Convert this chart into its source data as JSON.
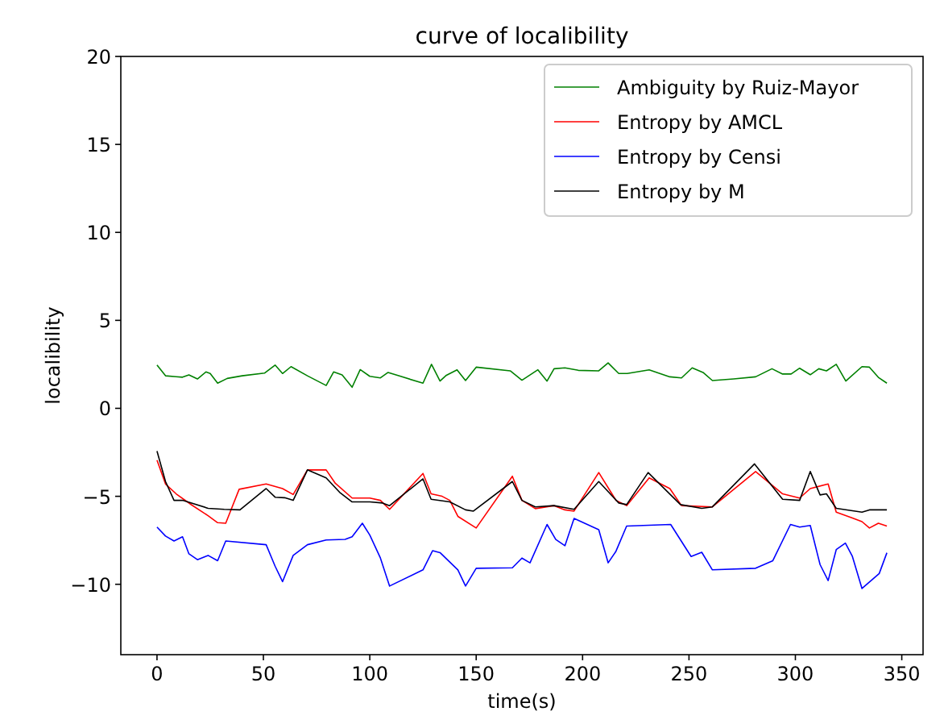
{
  "chart_data": {
    "type": "line",
    "title": "curve of localibility",
    "xlabel": "time(s)",
    "ylabel": "localibility",
    "xlim": [
      -17,
      360
    ],
    "ylim": [
      -14,
      20
    ],
    "xticks": [
      0,
      50,
      100,
      150,
      200,
      250,
      300,
      350
    ],
    "yticks": [
      {
        "value": -10,
        "label": "−10"
      },
      {
        "value": -5,
        "label": "−5"
      },
      0,
      5,
      10,
      15,
      20
    ],
    "grid": false,
    "legend": "top right",
    "line_style": "solid",
    "marker": "none",
    "series": [
      {
        "name": "Ambiguity by Ruiz-Mayor",
        "color": "#008000",
        "x": [
          0,
          4,
          9,
          12,
          15,
          19,
          23,
          25,
          28.5,
          33,
          40,
          50.5,
          55.5,
          59,
          63,
          70.7,
          79.5,
          83,
          87,
          91.7,
          95.5,
          100,
          105,
          108.6,
          113.6,
          125,
          129,
          133,
          136,
          141,
          145,
          150,
          166,
          171.5,
          179,
          183.3,
          186.6,
          191.7,
          198,
          207.6,
          212,
          217,
          221,
          231.3,
          241,
          246.5,
          251.5,
          256.6,
          261,
          271,
          281.3,
          289,
          294,
          298,
          302,
          307,
          311,
          314.6,
          319.2,
          323.7,
          331.3,
          334.8,
          339,
          343
        ],
        "values": [
          2.46,
          1.85,
          1.8,
          1.77,
          1.9,
          1.67,
          2.07,
          1.98,
          1.43,
          1.7,
          1.85,
          2.0,
          2.46,
          1.98,
          2.37,
          1.85,
          1.3,
          2.07,
          1.9,
          1.2,
          2.2,
          1.82,
          1.73,
          2.04,
          1.85,
          1.43,
          2.5,
          1.55,
          1.88,
          2.19,
          1.58,
          2.34,
          2.13,
          1.6,
          2.19,
          1.55,
          2.25,
          2.3,
          2.16,
          2.13,
          2.58,
          1.98,
          1.98,
          2.19,
          1.79,
          1.73,
          2.3,
          2.04,
          1.58,
          1.67,
          1.79,
          2.25,
          1.95,
          1.95,
          2.28,
          1.91,
          2.25,
          2.13,
          2.5,
          1.55,
          2.37,
          2.34,
          1.76,
          1.43
        ]
      },
      {
        "name": "Entropy by AMCL",
        "color": "#ff0000",
        "x": [
          0,
          4,
          9,
          16.4,
          24,
          28.5,
          32.3,
          38.6,
          51.3,
          59,
          64,
          70.7,
          79.5,
          83.8,
          91.7,
          100,
          105,
          109.3,
          125,
          128.8,
          134,
          137.6,
          141.4,
          150,
          167,
          171.5,
          177.8,
          186.6,
          191.7,
          196,
          207.6,
          215.7,
          220.7,
          231.3,
          241,
          246.5,
          261,
          281.3,
          294,
          302,
          307,
          315.4,
          319.2,
          326.8,
          331.3,
          334.8,
          339,
          343
        ],
        "values": [
          -2.95,
          -4.3,
          -4.86,
          -5.5,
          -6.1,
          -6.5,
          -6.53,
          -4.6,
          -4.3,
          -4.56,
          -4.9,
          -3.5,
          -3.5,
          -4.26,
          -5.1,
          -5.1,
          -5.23,
          -5.74,
          -3.7,
          -4.86,
          -5.0,
          -5.23,
          -6.14,
          -6.8,
          -3.86,
          -5.23,
          -5.7,
          -5.53,
          -5.77,
          -5.84,
          -3.65,
          -5.23,
          -5.53,
          -3.95,
          -4.56,
          -5.53,
          -5.6,
          -3.59,
          -4.86,
          -5.1,
          -4.56,
          -4.3,
          -5.9,
          -6.23,
          -6.44,
          -6.8,
          -6.53,
          -6.69
        ]
      },
      {
        "name": "Entropy by Censi",
        "color": "#0000ff",
        "x": [
          0,
          4,
          8,
          12,
          15,
          19,
          24,
          28.5,
          32.3,
          51.3,
          55.5,
          59,
          64,
          70.7,
          79.5,
          88.4,
          91.7,
          96.5,
          100,
          105,
          109.3,
          125,
          129.5,
          133,
          141.4,
          145,
          150,
          167,
          171.5,
          175.3,
          183.3,
          187.4,
          191.7,
          196,
          207.6,
          212,
          215.7,
          220.7,
          241.4,
          251,
          256,
          261,
          281.3,
          289.4,
          297.7,
          302,
          307,
          311.6,
          315.4,
          319.2,
          323.5,
          326.8,
          331.3,
          339.4,
          343
        ],
        "values": [
          -6.75,
          -7.26,
          -7.54,
          -7.3,
          -8.27,
          -8.6,
          -8.36,
          -8.66,
          -7.54,
          -7.75,
          -8.97,
          -9.85,
          -8.36,
          -7.75,
          -7.48,
          -7.45,
          -7.3,
          -6.53,
          -7.2,
          -8.51,
          -10.1,
          -9.18,
          -8.09,
          -8.2,
          -9.18,
          -10.1,
          -9.09,
          -9.06,
          -8.51,
          -8.78,
          -6.6,
          -7.45,
          -7.81,
          -6.26,
          -6.9,
          -8.78,
          -8.12,
          -6.69,
          -6.6,
          -8.42,
          -8.18,
          -9.18,
          -9.09,
          -8.66,
          -6.6,
          -6.75,
          -6.66,
          -8.88,
          -9.79,
          -8.03,
          -7.66,
          -8.42,
          -10.24,
          -9.39,
          -8.21
        ]
      },
      {
        "name": "Entropy by M",
        "color": "#000000",
        "x": [
          0,
          4,
          8,
          12,
          24,
          31.6,
          39,
          51.3,
          55.5,
          60,
          64,
          70.7,
          79.5,
          85.8,
          91.7,
          100,
          106,
          109.3,
          125,
          128.8,
          137.6,
          145,
          148.7,
          167,
          171.5,
          177.8,
          186.6,
          196,
          207.6,
          217,
          220.7,
          230.8,
          246,
          256,
          261,
          280.8,
          294,
          302,
          307,
          311.6,
          314.6,
          319.2,
          331.3,
          334.8,
          343
        ],
        "values": [
          -2.43,
          -4.16,
          -5.23,
          -5.23,
          -5.68,
          -5.74,
          -5.77,
          -4.56,
          -5.05,
          -5.08,
          -5.23,
          -3.5,
          -3.95,
          -4.77,
          -5.32,
          -5.32,
          -5.38,
          -5.53,
          -4.01,
          -5.17,
          -5.32,
          -5.77,
          -5.84,
          -4.16,
          -5.23,
          -5.6,
          -5.53,
          -5.74,
          -4.16,
          -5.38,
          -5.47,
          -3.65,
          -5.47,
          -5.68,
          -5.6,
          -3.16,
          -5.17,
          -5.23,
          -3.59,
          -4.92,
          -4.86,
          -5.68,
          -5.9,
          -5.77,
          -5.77
        ]
      }
    ]
  }
}
